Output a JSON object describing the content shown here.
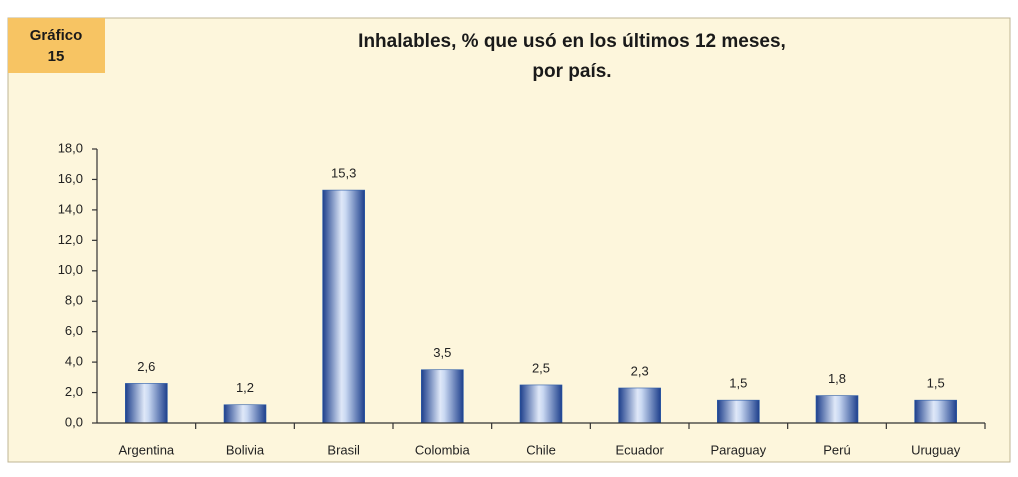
{
  "chart_data": {
    "type": "bar",
    "badge": [
      "Gráfico",
      "15"
    ],
    "title": [
      "Inhalables, % que usó en los últimos 12 meses,",
      "por país."
    ],
    "categories": [
      "Argentina",
      "Bolivia",
      "Brasil",
      "Colombia",
      "Chile",
      "Ecuador",
      "Paraguay",
      "Perú",
      "Uruguay"
    ],
    "values": [
      2.6,
      1.2,
      15.3,
      3.5,
      2.5,
      2.3,
      1.5,
      1.8,
      1.5
    ],
    "value_labels": [
      "2,6",
      "1,2",
      "15,3",
      "3,5",
      "2,5",
      "2,3",
      "1,5",
      "1,8",
      "1,5"
    ],
    "color": "#2a5aa8",
    "ylim": [
      0,
      18
    ],
    "yticks": [
      {
        "value": 0,
        "label": "0,0"
      },
      {
        "value": 2,
        "label": "2,0"
      },
      {
        "value": 4,
        "label": "4,0"
      },
      {
        "value": 6,
        "label": "6,0"
      },
      {
        "value": 8,
        "label": "8,0"
      },
      {
        "value": 10,
        "label": "10,0"
      },
      {
        "value": 12,
        "label": "12,0"
      },
      {
        "value": 14,
        "label": "14,0"
      },
      {
        "value": 16,
        "label": "16,0"
      },
      {
        "value": 18,
        "label": "18,0"
      }
    ],
    "grid": false
  }
}
